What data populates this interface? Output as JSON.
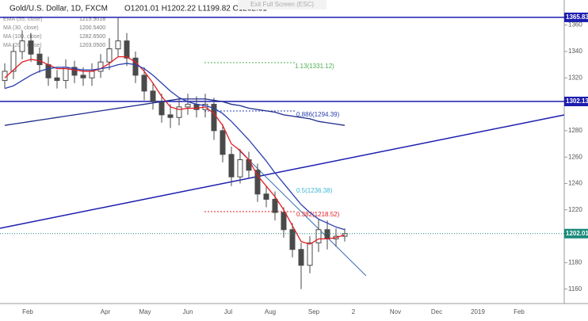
{
  "chart_data": {
    "type": "candlestick",
    "title": "Gold/U.S. Dollar, 1D, FXCM",
    "ohlc_text": "O1201.01 H1202.22 L1199.82 C1202.01",
    "button": "Exit Full Screen (ESC)",
    "indicators": [
      {
        "name": "EMA (55, close)",
        "value": "1215.5018"
      },
      {
        "name": "MA (30, close)",
        "value": "1200.5400"
      },
      {
        "name": "MA (100, close)",
        "value": "1282.6500"
      },
      {
        "name": "MA (200, close)",
        "value": "1203.0500"
      }
    ],
    "categories": [
      null,
      null,
      null,
      null,
      null,
      null,
      null,
      null,
      null,
      null,
      null,
      null,
      null,
      null,
      null,
      null,
      null,
      null,
      null,
      null,
      null,
      null,
      null,
      null,
      null,
      null,
      null,
      null,
      null,
      null,
      null,
      null,
      null,
      null,
      null,
      null,
      null,
      null,
      null,
      null
    ],
    "open": [
      1318,
      1325,
      1340,
      1348,
      1338,
      1330,
      1320,
      1318,
      1328,
      1322,
      1320,
      1325,
      1332,
      1342,
      1348,
      1335,
      1322,
      1310,
      1302,
      1292,
      1290,
      1298,
      1300,
      1296,
      1300,
      1280,
      1262,
      1245,
      1258,
      1250,
      1232,
      1228,
      1218,
      1205,
      1190,
      1178,
      1195,
      1205,
      1198,
      1200
    ],
    "high": [
      1331,
      1346,
      1356,
      1354,
      1343,
      1336,
      1326,
      1334,
      1333,
      1328,
      1331,
      1338,
      1350,
      1366,
      1354,
      1340,
      1328,
      1316,
      1308,
      1300,
      1305,
      1308,
      1306,
      1308,
      1305,
      1285,
      1268,
      1266,
      1264,
      1255,
      1238,
      1234,
      1222,
      1210,
      1195,
      1200,
      1213,
      1212,
      1206,
      1206
    ],
    "low": [
      1312,
      1319,
      1334,
      1332,
      1324,
      1314,
      1312,
      1312,
      1316,
      1314,
      1314,
      1320,
      1326,
      1336,
      1329,
      1316,
      1303,
      1296,
      1286,
      1282,
      1284,
      1292,
      1290,
      1290,
      1273,
      1256,
      1238,
      1240,
      1244,
      1226,
      1222,
      1212,
      1199,
      1184,
      1160,
      1172,
      1188,
      1190,
      1192,
      1196
    ],
    "close": [
      1325,
      1340,
      1348,
      1338,
      1330,
      1320,
      1318,
      1328,
      1322,
      1320,
      1325,
      1332,
      1342,
      1348,
      1335,
      1322,
      1310,
      1302,
      1292,
      1290,
      1298,
      1300,
      1296,
      1300,
      1280,
      1262,
      1245,
      1258,
      1250,
      1232,
      1228,
      1218,
      1205,
      1190,
      1178,
      1195,
      1205,
      1198,
      1200,
      1202
    ],
    "up_color": "#4a4a4a",
    "down_color": "#4a4a4a",
    "series": [
      {
        "color": "#e31e24",
        "values": [
          1320,
          1326,
          1332,
          1334,
          1333,
          1330,
          1327,
          1327,
          1326,
          1325,
          1325,
          1327,
          1331,
          1336,
          1336,
          1332,
          1325,
          1316,
          1306,
          1298,
          1296,
          1297,
          1297,
          1298,
          1293,
          1284,
          1270,
          1265,
          1258,
          1246,
          1238,
          1230,
          1220,
          1208,
          1196,
          1194,
          1198,
          1198,
          1199,
          1201
        ]
      },
      {
        "color": "#2a3fb0",
        "values": [
          1312,
          1314,
          1318,
          1322,
          1325,
          1327,
          1328,
          1328,
          1327,
          1326,
          1326,
          1327,
          1328,
          1330,
          1331,
          1330,
          1327,
          1322,
          1316,
          1310,
          1305,
          1302,
          1300,
          1299,
          1297,
          1293,
          1287,
          1280,
          1273,
          1265,
          1257,
          1248,
          1240,
          1232,
          1224,
          1218,
          1213,
          1210,
          1207,
          1205
        ]
      },
      {
        "color": "#1c2a8c",
        "values": [
          1284,
          1285,
          1286,
          1287,
          1288,
          1289,
          1290,
          1291,
          1292,
          1293,
          1294,
          1295,
          1296,
          1297,
          1298,
          1299,
          1300,
          1301,
          1302,
          1303,
          1304,
          1304,
          1304,
          1304,
          1303,
          1302,
          1300,
          1299,
          1297,
          1296,
          1295,
          1294,
          1292,
          1291,
          1290,
          1289,
          1287,
          1286,
          1285,
          1284
        ]
      }
    ],
    "hlines": [
      {
        "value": 1365.83,
        "color": "#1c1cb0"
      },
      {
        "value": 1302.13,
        "color": "#1c1cb0"
      }
    ],
    "last_price": {
      "value": 1202.01,
      "color": "#1a8a7a"
    },
    "annotations": [
      "1.13(1331.12)",
      "0.886(1294.39)",
      "0.5(1236.38)",
      "0.382(1218.52)"
    ],
    "xlabels": [
      "Feb",
      "Apr",
      "May",
      "Jun",
      "Jul",
      "Aug",
      "Sep",
      "2",
      "Nov",
      "Dec",
      "2019",
      "Feb"
    ],
    "ylim": [
      1149,
      1379
    ],
    "yticks": [
      1160,
      1180,
      1200,
      1220,
      1240,
      1260,
      1280,
      1300,
      1320,
      1340,
      1360
    ]
  }
}
